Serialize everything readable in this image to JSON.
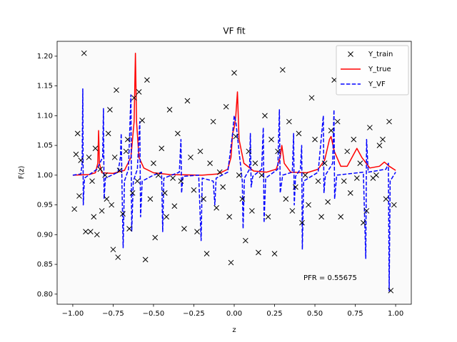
{
  "chart_data": {
    "type": "line",
    "title": "VF fit",
    "xlabel": "z",
    "ylabel": "F(z)",
    "annotation": "PFR = 0.55675",
    "legend": "upper right",
    "xlim": [
      -1.097,
      1.097
    ],
    "ylim": [
      0.783,
      1.225
    ],
    "xticks": [
      {
        "value": -1,
        "label": "−1.00"
      },
      {
        "value": -0.75,
        "label": "−0.75"
      },
      {
        "value": -0.5,
        "label": "−0.50"
      },
      {
        "value": -0.25,
        "label": "−0.25"
      },
      {
        "value": 0,
        "label": "0.00"
      },
      {
        "value": 0.25,
        "label": "0.25"
      },
      {
        "value": 0.5,
        "label": "0.50"
      },
      {
        "value": 0.75,
        "label": "0.75"
      },
      {
        "value": 1,
        "label": "1.00"
      }
    ],
    "yticks": [
      {
        "value": 0.8,
        "label": "0.80"
      },
      {
        "value": 0.85,
        "label": "0.85"
      },
      {
        "value": 0.9,
        "label": "0.90"
      },
      {
        "value": 0.95,
        "label": "0.95"
      },
      {
        "value": 1,
        "label": "1.00"
      },
      {
        "value": 1.05,
        "label": "1.05"
      },
      {
        "value": 1.1,
        "label": "1.10"
      },
      {
        "value": 1.15,
        "label": "1.15"
      },
      {
        "value": 1.2,
        "label": "1.20"
      }
    ],
    "series": [
      {
        "name": "Y_train",
        "color": "#000000",
        "style": "markers",
        "x": [
          -0.99,
          -0.98,
          -0.97,
          -0.96,
          -0.95,
          -0.93,
          -0.92,
          -0.9,
          -0.89,
          -0.88,
          -0.87,
          -0.86,
          -0.85,
          -0.83,
          -0.82,
          -0.8,
          -0.79,
          -0.78,
          -0.77,
          -0.76,
          -0.75,
          -0.74,
          -0.73,
          -0.72,
          -0.71,
          -0.69,
          -0.67,
          -0.66,
          -0.65,
          -0.63,
          -0.62,
          -0.6,
          -0.59,
          -0.57,
          -0.55,
          -0.54,
          -0.52,
          -0.5,
          -0.49,
          -0.47,
          -0.45,
          -0.43,
          -0.42,
          -0.4,
          -0.38,
          -0.37,
          -0.35,
          -0.33,
          -0.31,
          -0.29,
          -0.27,
          -0.25,
          -0.23,
          -0.21,
          -0.19,
          -0.17,
          -0.15,
          -0.13,
          -0.11,
          -0.09,
          -0.07,
          -0.05,
          -0.03,
          -0.02,
          0.0,
          0.01,
          0.03,
          0.05,
          0.07,
          0.09,
          0.11,
          0.13,
          0.15,
          0.17,
          0.19,
          0.21,
          0.23,
          0.25,
          0.27,
          0.3,
          0.32,
          0.34,
          0.36,
          0.38,
          0.4,
          0.42,
          0.44,
          0.46,
          0.48,
          0.5,
          0.52,
          0.54,
          0.56,
          0.58,
          0.6,
          0.62,
          0.64,
          0.66,
          0.68,
          0.7,
          0.72,
          0.74,
          0.76,
          0.78,
          0.8,
          0.82,
          0.84,
          0.86,
          0.88,
          0.9,
          0.92,
          0.94,
          0.96,
          0.97,
          0.99
        ],
        "values": [
          0.943,
          1.035,
          1.07,
          0.965,
          1.025,
          1.205,
          0.905,
          1.03,
          0.905,
          0.99,
          0.93,
          1.045,
          0.9,
          1.01,
          0.94,
          1.0,
          0.96,
          1.07,
          1.11,
          0.95,
          0.875,
          1.03,
          1.143,
          0.862,
          1.008,
          0.935,
          1.04,
          1.06,
          0.91,
          0.97,
          1.13,
          0.99,
          1.14,
          1.092,
          0.858,
          1.16,
          0.96,
          1.02,
          0.895,
          1.0,
          1.045,
          0.97,
          0.93,
          1.11,
          0.995,
          0.948,
          1.07,
          0.99,
          0.91,
          1.125,
          1.03,
          0.975,
          0.905,
          1.04,
          0.96,
          0.868,
          1.02,
          1.09,
          0.945,
          1.005,
          0.98,
          1.115,
          0.93,
          0.853,
          1.172,
          1.065,
          1.0,
          0.96,
          0.89,
          1.04,
          0.94,
          1.02,
          0.87,
          1.0,
          1.1,
          0.93,
          1.06,
          0.868,
          1.04,
          1.177,
          0.96,
          1.09,
          0.94,
          0.98,
          1.07,
          0.92,
          1.0,
          0.95,
          1.13,
          1.06,
          0.99,
          0.93,
          1.02,
          0.955,
          1.075,
          1.16,
          1.09,
          0.93,
          0.99,
          1.04,
          0.97,
          1.06,
          0.995,
          1.02,
          0.92,
          0.94,
          1.08,
          0.995,
          1.0,
          1.05,
          1.06,
          0.96,
          1.09,
          0.806,
          0.95
        ]
      },
      {
        "name": "Y_true",
        "color": "#ff0000",
        "style": "solid",
        "x": [
          -1.0,
          -0.9,
          -0.86,
          -0.845,
          -0.84,
          -0.835,
          -0.82,
          -0.75,
          -0.68,
          -0.64,
          -0.62,
          -0.612,
          -0.605,
          -0.59,
          -0.56,
          -0.5,
          -0.4,
          -0.2,
          -0.1,
          -0.04,
          -0.02,
          -0.01,
          0.0,
          0.01,
          0.02,
          0.03,
          0.06,
          0.12,
          0.2,
          0.26,
          0.285,
          0.295,
          0.31,
          0.35,
          0.45,
          0.52,
          0.56,
          0.59,
          0.6,
          0.62,
          0.66,
          0.7,
          0.73,
          0.76,
          0.79,
          0.84,
          0.9,
          0.93,
          0.96,
          1.0
        ],
        "values": [
          1.0,
          1.001,
          1.004,
          1.02,
          1.075,
          1.02,
          1.004,
          1.003,
          1.008,
          1.03,
          1.09,
          1.205,
          1.09,
          1.03,
          1.012,
          1.004,
          1.001,
          1.0,
          1.002,
          1.01,
          1.03,
          1.07,
          1.08,
          1.1,
          1.14,
          1.06,
          1.02,
          1.007,
          1.005,
          1.01,
          1.03,
          1.05,
          1.02,
          1.005,
          1.004,
          1.01,
          1.025,
          1.06,
          1.065,
          1.04,
          1.015,
          1.015,
          1.03,
          1.045,
          1.03,
          1.012,
          1.015,
          1.022,
          1.015,
          1.008
        ]
      },
      {
        "name": "Y_VF",
        "color": "#0000ff",
        "style": "dashed",
        "x": [
          -1.0,
          -0.95,
          -0.942,
          -0.938,
          -0.935,
          -0.928,
          -0.85,
          -0.815,
          -0.81,
          -0.806,
          -0.798,
          -0.72,
          -0.705,
          -0.7,
          -0.695,
          -0.688,
          -0.68,
          -0.655,
          -0.64,
          -0.635,
          -0.625,
          -0.6,
          -0.585,
          -0.58,
          -0.57,
          -0.5,
          -0.45,
          -0.443,
          -0.436,
          -0.34,
          -0.33,
          -0.326,
          -0.318,
          -0.22,
          -0.205,
          -0.198,
          -0.13,
          -0.12,
          -0.112,
          -0.04,
          -0.01,
          0.0,
          0.01,
          0.03,
          0.05,
          0.055,
          0.063,
          0.095,
          0.1,
          0.105,
          0.115,
          0.17,
          0.18,
          0.185,
          0.195,
          0.27,
          0.28,
          0.285,
          0.3,
          0.36,
          0.368,
          0.372,
          0.38,
          0.41,
          0.418,
          0.422,
          0.43,
          0.52,
          0.552,
          0.556,
          0.565,
          0.61,
          0.618,
          0.622,
          0.635,
          0.8,
          0.815,
          0.82,
          0.83,
          0.94,
          0.955,
          0.96,
          0.966,
          1.0
        ],
        "values": [
          1.0,
          1.002,
          1.02,
          1.145,
          0.95,
          0.995,
          1.01,
          1.03,
          1.112,
          0.96,
          0.995,
          1.005,
          1.03,
          1.07,
          0.98,
          0.878,
          0.99,
          1.01,
          1.135,
          0.905,
          0.99,
          1.01,
          1.09,
          0.93,
          0.99,
          1.0,
          1.005,
          0.905,
          0.995,
          1.005,
          1.06,
          0.97,
          0.998,
          1.0,
          0.89,
          0.995,
          0.99,
          0.95,
          0.995,
          1.005,
          1.07,
          1.1,
          1.09,
          1.04,
          0.99,
          0.91,
          0.995,
          1.01,
          1.07,
          0.98,
          0.998,
          1.01,
          1.08,
          0.92,
          0.995,
          1.01,
          1.11,
          0.97,
          1.0,
          1.005,
          1.07,
          0.95,
          0.998,
          1.01,
          1.05,
          0.875,
          0.99,
          1.005,
          1.1,
          0.97,
          1.0,
          1.02,
          1.11,
          0.96,
          1.0,
          1.005,
          0.86,
          1.06,
          1.005,
          1.01,
          1.02,
          0.805,
          0.99,
          1.005
        ]
      }
    ]
  }
}
